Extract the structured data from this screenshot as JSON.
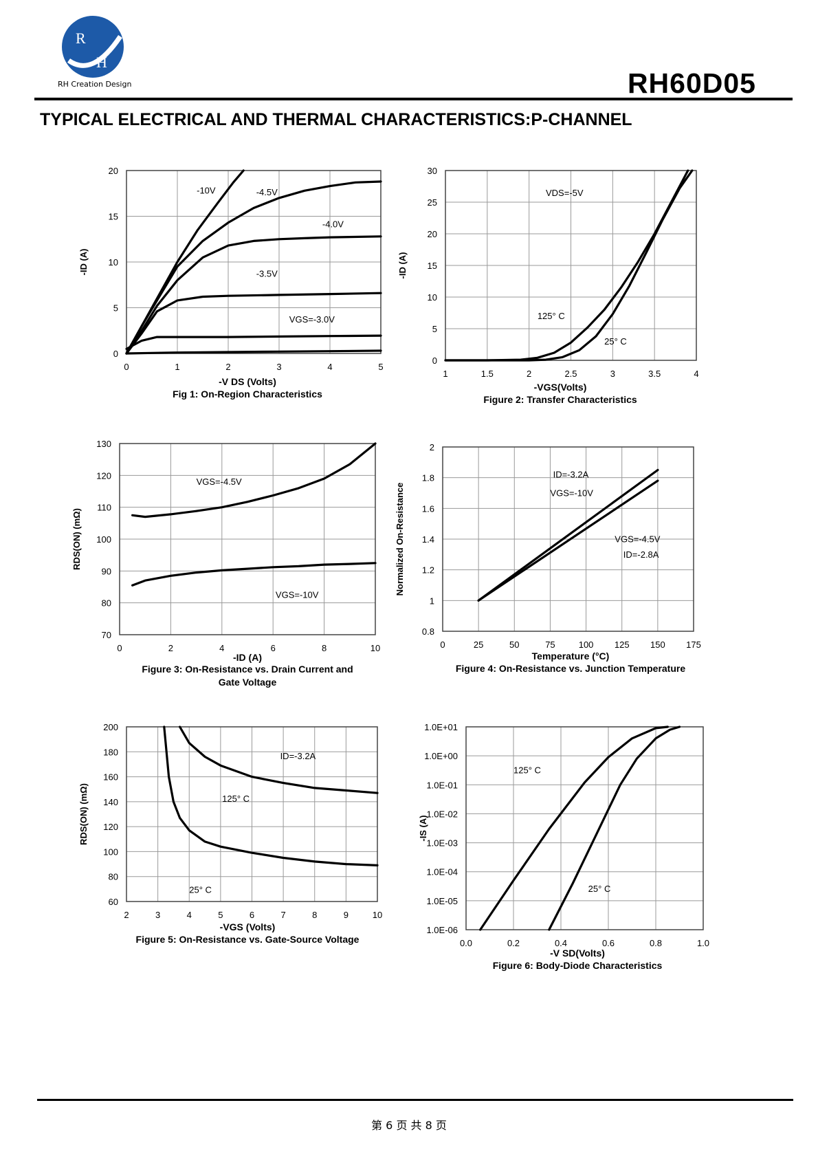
{
  "header": {
    "company": "RH Creation Design",
    "logo_letters": [
      "R",
      "H"
    ],
    "part_number": "RH60D05",
    "title": "TYPICAL ELECTRICAL AND THERMAL CHARACTERISTICS:P-CHANNEL"
  },
  "footer": {
    "page": "第 6 页 共 8 页"
  },
  "chart_data": [
    {
      "id": "fig1",
      "type": "line",
      "xlim": [
        0,
        5
      ],
      "ylim": [
        0,
        20
      ],
      "xticks": [
        "0",
        "1",
        "2",
        "3",
        "4",
        "5"
      ],
      "yticks": [
        "0",
        "5",
        "10",
        "15",
        "20"
      ],
      "xlabel": "-V DS (Volts)",
      "ylabel": "-ID (A)",
      "caption": "Fig 1: On-Region Characteristics",
      "annotations": [
        {
          "text": "-10V",
          "x": 1.38,
          "y": 17.5
        },
        {
          "text": "-4.5V",
          "x": 2.55,
          "y": 17.3
        },
        {
          "text": "-4.0V",
          "x": 3.85,
          "y": 13.8
        },
        {
          "text": "-3.5V",
          "x": 2.55,
          "y": 8.4
        },
        {
          "text": "VGS=-3.0V",
          "x": 3.2,
          "y": 3.4
        }
      ],
      "series": [
        {
          "name": "-10V",
          "x": [
            0,
            0.3,
            0.6,
            1,
            1.4,
            1.8,
            2.1,
            2.3
          ],
          "y": [
            0,
            3,
            6,
            10,
            13.5,
            16.5,
            18.7,
            20
          ]
        },
        {
          "name": "-4.5V",
          "x": [
            0,
            0.3,
            0.6,
            1,
            1.5,
            2,
            2.5,
            3,
            3.5,
            4,
            4.5,
            5
          ],
          "y": [
            0,
            3,
            5.8,
            9.5,
            12.3,
            14.3,
            15.9,
            17,
            17.8,
            18.3,
            18.7,
            18.8
          ]
        },
        {
          "name": "-4.0V",
          "x": [
            0,
            0.3,
            0.6,
            1,
            1.5,
            2,
            2.5,
            3,
            3.5,
            4,
            5
          ],
          "y": [
            0,
            2.5,
            5.2,
            8,
            10.5,
            11.8,
            12.3,
            12.5,
            12.6,
            12.7,
            12.8
          ]
        },
        {
          "name": "-3.5V",
          "x": [
            0,
            0.3,
            0.6,
            1,
            1.5,
            2,
            3,
            4,
            5
          ],
          "y": [
            0,
            2.2,
            4.6,
            5.8,
            6.2,
            6.3,
            6.4,
            6.5,
            6.6
          ]
        },
        {
          "name": "VGS=-3.0V",
          "x": [
            0,
            0.3,
            0.6,
            1,
            2,
            3,
            4,
            5
          ],
          "y": [
            0.5,
            1.4,
            1.8,
            1.8,
            1.8,
            1.85,
            1.9,
            1.95
          ]
        },
        {
          "name": "",
          "x": [
            0,
            0.5,
            1,
            2,
            3,
            4,
            5
          ],
          "y": [
            0,
            0.05,
            0.1,
            0.15,
            0.2,
            0.25,
            0.3
          ]
        }
      ]
    },
    {
      "id": "fig2",
      "type": "line",
      "xlim": [
        1,
        4
      ],
      "ylim": [
        0,
        30
      ],
      "xticks": [
        "1",
        "1.5",
        "2",
        "2.5",
        "3",
        "3.5",
        "4"
      ],
      "yticks": [
        "0",
        "5",
        "10",
        "15",
        "20",
        "25",
        "30"
      ],
      "xlabel": "-VGS(Volts)",
      "ylabel": "-ID (A)",
      "caption": "Figure 2: Transfer Characteristics",
      "annotations": [
        {
          "text": "VDS=-5V",
          "x": 2.2,
          "y": 26
        },
        {
          "text": "125° C",
          "x": 2.1,
          "y": 6.5
        },
        {
          "text": "25° C",
          "x": 2.9,
          "y": 2.5
        }
      ],
      "series": [
        {
          "name": "125° C",
          "x": [
            1,
            1.5,
            1.9,
            2.1,
            2.3,
            2.5,
            2.7,
            2.9,
            3.1,
            3.3,
            3.5,
            3.7,
            3.9
          ],
          "y": [
            0,
            0,
            0.1,
            0.4,
            1.2,
            2.8,
            5.2,
            8,
            11.5,
            15.5,
            20,
            25,
            30
          ]
        },
        {
          "name": "25° C",
          "x": [
            1,
            1.5,
            2,
            2.2,
            2.4,
            2.6,
            2.8,
            3,
            3.2,
            3.4,
            3.6,
            3.8,
            3.95
          ],
          "y": [
            0,
            0,
            0,
            0.1,
            0.5,
            1.6,
            3.8,
            7.3,
            11.8,
            17,
            22.3,
            27.2,
            30
          ]
        }
      ]
    },
    {
      "id": "fig3",
      "type": "line",
      "xlim": [
        0,
        10
      ],
      "ylim": [
        70,
        130
      ],
      "xticks": [
        "0",
        "2",
        "4",
        "6",
        "8",
        "10"
      ],
      "yticks": [
        "70",
        "80",
        "90",
        "100",
        "110",
        "120",
        "130"
      ],
      "xlabel": "-ID (A)",
      "ylabel": "RDS(ON) (mΩ)",
      "caption": "Figure 3: On-Resistance vs. Drain Current and",
      "caption2": "Gate Voltage",
      "annotations": [
        {
          "text": "VGS=-4.5V",
          "x": 3,
          "y": 117
        },
        {
          "text": "VGS=-10V",
          "x": 6.1,
          "y": 81.5
        }
      ],
      "series": [
        {
          "name": "VGS=-4.5V",
          "x": [
            0.5,
            1,
            2,
            3,
            4,
            5,
            6,
            7,
            8,
            9,
            10
          ],
          "y": [
            107.5,
            107,
            107.8,
            108.8,
            110,
            111.7,
            113.7,
            116,
            119,
            123.5,
            130
          ]
        },
        {
          "name": "VGS=-10V",
          "x": [
            0.5,
            1,
            2,
            3,
            4,
            5,
            6,
            7,
            8,
            9,
            10
          ],
          "y": [
            85.5,
            87,
            88.5,
            89.5,
            90.2,
            90.7,
            91.2,
            91.5,
            92,
            92.2,
            92.5
          ]
        }
      ]
    },
    {
      "id": "fig4",
      "type": "line",
      "xlim": [
        0,
        175
      ],
      "ylim": [
        0.8,
        2
      ],
      "xticks": [
        "0",
        "25",
        "50",
        "75",
        "100",
        "125",
        "150",
        "175"
      ],
      "yticks": [
        "0.8",
        "1",
        "1.2",
        "1.4",
        "1.6",
        "1.8",
        "2"
      ],
      "xlabel": "Temperature (°C)",
      "ylabel": "Normalized On-Resistance",
      "caption": "Figure 4: On-Resistance vs. Junction Temperature",
      "annotations": [
        {
          "text": "ID=-3.2A",
          "x": 77,
          "y": 1.8
        },
        {
          "text": "VGS=-10V",
          "x": 75,
          "y": 1.68
        },
        {
          "text": "VGS=-4.5V",
          "x": 120,
          "y": 1.38
        },
        {
          "text": "ID=-2.8A",
          "x": 126,
          "y": 1.28
        }
      ],
      "series": [
        {
          "name": "VGS=-10V",
          "x": [
            25,
            150
          ],
          "y": [
            1,
            1.85
          ]
        },
        {
          "name": "VGS=-4.5V",
          "x": [
            25,
            150
          ],
          "y": [
            1,
            1.78
          ]
        }
      ]
    },
    {
      "id": "fig5",
      "type": "line",
      "xlim": [
        2,
        10
      ],
      "ylim": [
        60,
        200
      ],
      "xticks": [
        "2",
        "3",
        "4",
        "5",
        "6",
        "7",
        "8",
        "9",
        "10"
      ],
      "yticks": [
        "60",
        "80",
        "100",
        "120",
        "140",
        "160",
        "180",
        "200"
      ],
      "xlabel": "-VGS (Volts)",
      "ylabel": "RDS(ON) (mΩ)",
      "caption": "Figure 5: On-Resistance vs. Gate-Source Voltage",
      "annotations": [
        {
          "text": "ID=-3.2A",
          "x": 6.9,
          "y": 174
        },
        {
          "text": "125° C",
          "x": 5.05,
          "y": 140
        },
        {
          "text": "25° C",
          "x": 4,
          "y": 67
        }
      ],
      "series": [
        {
          "name": "125° C",
          "x": [
            3.7,
            4,
            4.5,
            5,
            6,
            7,
            8,
            9,
            10
          ],
          "y": [
            200,
            187,
            176,
            169,
            160,
            155,
            151,
            149,
            147
          ]
        },
        {
          "name": "25° C",
          "x": [
            3.2,
            3.35,
            3.5,
            3.7,
            4,
            4.5,
            5,
            6,
            7,
            8,
            9,
            10
          ],
          "y": [
            200,
            160,
            140,
            127,
            117,
            108,
            104,
            99,
            95,
            92,
            90,
            89
          ]
        }
      ]
    },
    {
      "id": "fig6",
      "type": "line",
      "scale_y": "log",
      "xlim": [
        0,
        1
      ],
      "ylim": [
        -6,
        1
      ],
      "xticks": [
        "0.0",
        "0.2",
        "0.4",
        "0.6",
        "0.8",
        "1.0"
      ],
      "yticks": [
        "1.0E-06",
        "1.0E-05",
        "1.0E-04",
        "1.0E-03",
        "1.0E-02",
        "1.0E-01",
        "1.0E+00",
        "1.0E+01"
      ],
      "xlabel": "-V SD(Volts)",
      "ylabel": "-IS (A)",
      "caption": "Figure 6: Body-Diode Characteristics",
      "annotations": [
        {
          "text": "125° C",
          "x": 0.2,
          "y": -0.6
        },
        {
          "text": "25° C",
          "x": 0.515,
          "y": -4.7
        }
      ],
      "series": [
        {
          "name": "125° C",
          "x": [
            0.06,
            0.2,
            0.35,
            0.5,
            0.6,
            0.7,
            0.8,
            0.85
          ],
          "y": [
            1e-06,
            5e-05,
            0.003,
            0.12,
            0.9,
            4,
            9,
            10
          ]
        },
        {
          "name": "25° C",
          "x": [
            0.35,
            0.45,
            0.55,
            0.65,
            0.72,
            0.8,
            0.86,
            0.9
          ],
          "y": [
            1e-06,
            4e-05,
            0.002,
            0.1,
            0.8,
            4,
            8,
            10
          ]
        }
      ]
    }
  ]
}
